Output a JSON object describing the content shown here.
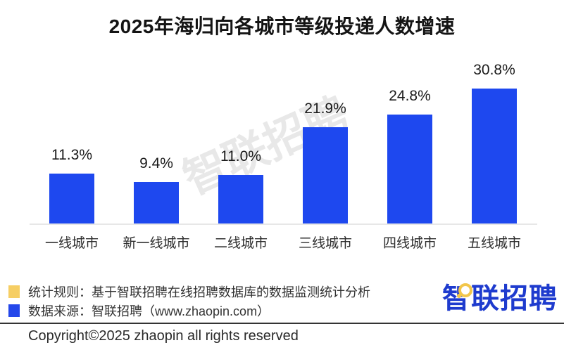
{
  "title": "2025年海归向各城市等级投递人数增速",
  "watermark": "智联招聘",
  "chart_data": {
    "type": "bar",
    "title": "2025年海归向各城市等级投递人数增速",
    "categories": [
      "一线城市",
      "新一线城市",
      "二线城市",
      "三线城市",
      "四线城市",
      "五线城市"
    ],
    "values": [
      11.3,
      9.4,
      11.0,
      21.9,
      24.8,
      30.8
    ],
    "labels": [
      "11.3%",
      "9.4%",
      "11.0%",
      "21.9%",
      "24.8%",
      "30.8%"
    ],
    "xlabel": "",
    "ylabel": "",
    "ylim": [
      0,
      35
    ],
    "grid": false,
    "legend_position": "none",
    "bar_color": "#1e48ef",
    "axis_line_color": "#e7e7e7"
  },
  "footer": {
    "legend": [
      {
        "swatch_color": "#f6ce63",
        "label": "统计规则：基于智联招聘在线招聘数据库的数据监测统计分析"
      },
      {
        "swatch_color": "#2447ea",
        "label": "数据来源：智联招聘（www.zhaopin.com）"
      }
    ],
    "copyright": "Copyright©2025 zhaopin all rights reserved",
    "logo_text": "智联招聘"
  },
  "colors": {
    "bar": "#1e48ef",
    "logo_blue": "#1e3bce",
    "logo_yellow": "#f2c64a",
    "watermark_gray": "#c7c7c7",
    "separator": "#343434"
  }
}
